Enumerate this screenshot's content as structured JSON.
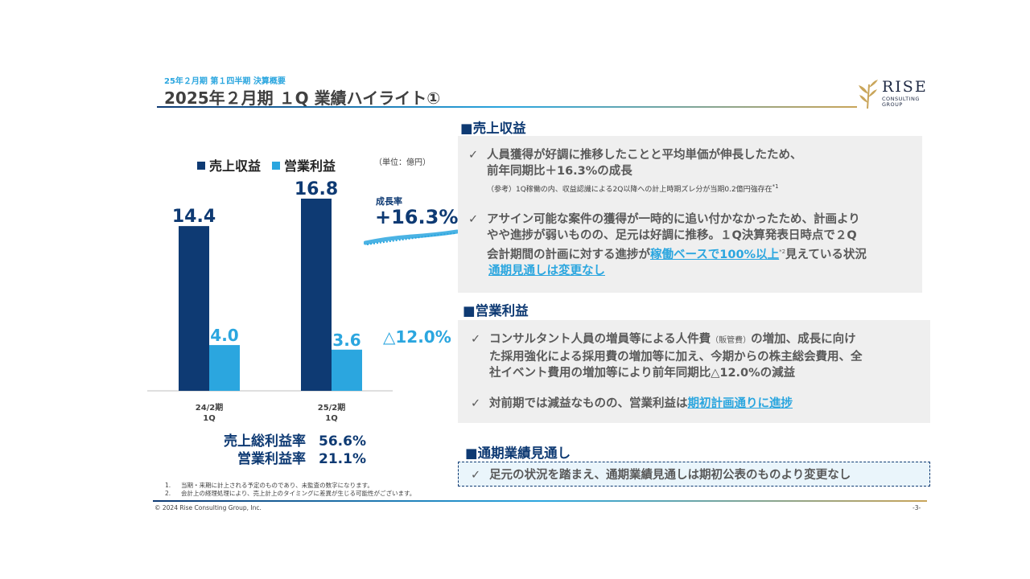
{
  "header": {
    "subtitle": "25年２月期 第１四半期 決算概要",
    "title": "2025年２月期 １Q 業績ハイライト①"
  },
  "logo": {
    "name": "RISE",
    "sub1": "CONSULTING",
    "sub2": "GROUP"
  },
  "colors": {
    "navy": "#0E3A73",
    "blue": "#2BA6DF",
    "gold": "#C9A55A",
    "panel": "#EFEFEF"
  },
  "legend": {
    "revenue": "売上収益",
    "op_profit": "営業利益"
  },
  "unit": "（単位：億円）",
  "chart_data": {
    "type": "bar",
    "categories": [
      "24/2期\n1Q",
      "25/2期\n1Q"
    ],
    "category_lines": [
      [
        "24/2期",
        "1Q"
      ],
      [
        "25/2期",
        "1Q"
      ]
    ],
    "series": [
      {
        "name": "売上収益",
        "values": [
          14.4,
          16.8
        ],
        "labels": [
          "14.4",
          "16.8"
        ],
        "color": "#0E3A73"
      },
      {
        "name": "営業利益",
        "values": [
          4.0,
          3.6
        ],
        "labels": [
          "4.0",
          "3.6"
        ],
        "color": "#2BA6DF"
      }
    ],
    "ylim": [
      0,
      16.8
    ],
    "grid": false
  },
  "growth": {
    "label": "成長率",
    "value": "+16.3%",
    "decline": "△12.0%"
  },
  "ratios": [
    {
      "label": "売上総利益率",
      "value": "56.6%"
    },
    {
      "label": "営業利益率",
      "value": "21.1%"
    }
  ],
  "footnotes": [
    {
      "n": "1.",
      "text": "当期・来期に計上される予定のものであり、未監査の数字になります。"
    },
    {
      "n": "2.",
      "text": "会計上の経理処理により、売上計上のタイミングに差異が生じる可能性がございます。"
    }
  ],
  "footer": {
    "copyright": "© 2024 Rise Consulting Group, Inc.",
    "page": "-3-"
  },
  "sections": {
    "revenue": {
      "heading": "■売上収益",
      "b1_line1": "人員獲得が好調に推移したことと平均単価が伸長したため、",
      "b1_line2": "前年同期比＋16.3%の成長",
      "b1_note": "（参考）1Q稼働の内、収益認識による2Q以降への計上時期ズレ分が当期0.2億円強存在",
      "b1_note_sup": "*1",
      "b2_line1": "アサイン可能な案件の獲得が一時的に追い付かなかったため、計画より",
      "b2_line2": "やや進捗が弱いものの、足元は好調に推移。１Q決算発表日時点で２Q",
      "b2_line3_pre": "会計期間の計画に対する進捗が",
      "b2_line3_link": "稼働ベースで100%以上",
      "b2_line3_sup": "*2",
      "b2_line3_post": "見えている状況",
      "b2_line4_link": "通期見通しは変更なし"
    },
    "op_profit": {
      "heading": "■営業利益",
      "b1_line1_pre": "コンサルタント人員の増員等による人件費",
      "b1_line1_small": "（販管費）",
      "b1_line1_post": "の増加、成長に向け",
      "b1_line2": "た採用強化による採用費の増加等に加え、今期からの株主総会費用、全",
      "b1_line3": "社イベント費用の増加等により前年同期比△12.0%の減益",
      "b2_pre": "対前期では減益なものの、営業利益は",
      "b2_link": "期初計画通りに進捗"
    },
    "outlook": {
      "heading": "■通期業績見通し",
      "b1": "足元の状況を踏まえ、通期業績見通しは期初公表のものより変更なし"
    }
  },
  "check": "✓"
}
